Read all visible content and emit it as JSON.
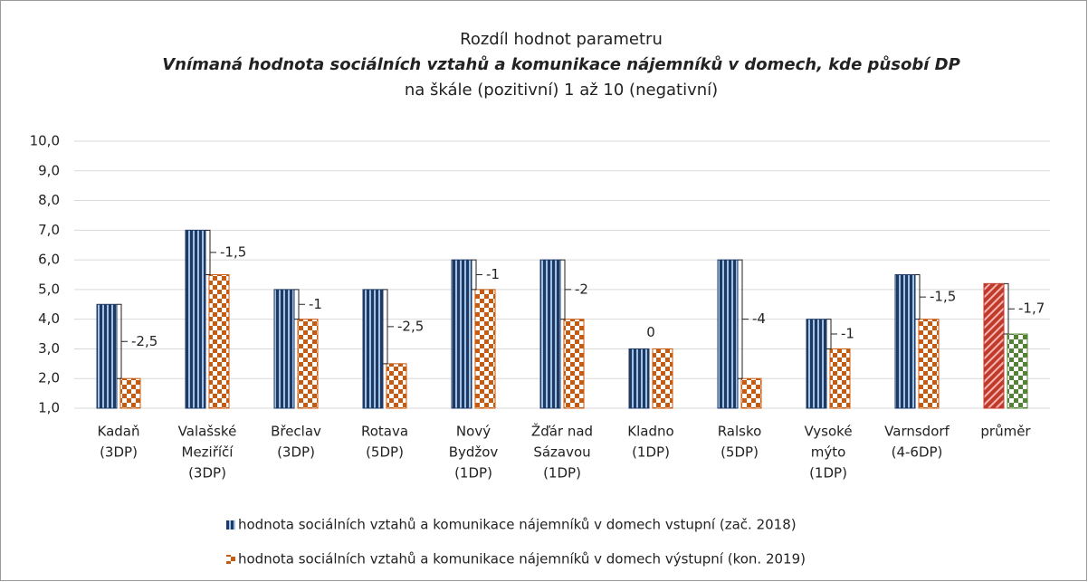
{
  "chart_data": {
    "type": "bar",
    "title": "Rozdíl hodnot parametru",
    "subtitle": "Vnímaná hodnota sociálních vztahů a komunikace nájemníků v domech, kde působí DP",
    "subtitle2": "na škále (pozitivní) 1 až 10 (negativní)",
    "categories": [
      [
        "Kadaň",
        "(3DP)"
      ],
      [
        "Valašské",
        "Meziříčí",
        "(3DP)"
      ],
      [
        "Břeclav",
        "(3DP)"
      ],
      [
        "Rotava",
        "(5DP)"
      ],
      [
        "Nový",
        "Bydžov",
        "(1DP)"
      ],
      [
        "Žďár nad",
        "Sázavou",
        "(1DP)"
      ],
      [
        "Kladno",
        "(1DP)"
      ],
      [
        "Ralsko",
        "(5DP)"
      ],
      [
        "Vysoké",
        "mýto",
        "(1DP)"
      ],
      [
        "Varnsdorf",
        "(4-6DP)"
      ],
      [
        "průměr"
      ]
    ],
    "series": [
      {
        "name": "hodnota sociálních vztahů a komunikace nájemníků v domech vstupní (zač. 2018)",
        "color": "#1f3864",
        "colors": [
          "#1f3864",
          "#1f3864",
          "#1f3864",
          "#1f3864",
          "#1f3864",
          "#1f3864",
          "#1f3864",
          "#1f3864",
          "#1f3864",
          "#1f3864",
          "#c0392b"
        ],
        "values": [
          4.5,
          7,
          5,
          5,
          6,
          6,
          3,
          6,
          4,
          5.5,
          5.2
        ]
      },
      {
        "name": "hodnota sociálních vztahů a komunikace nájemníků v domech výstupní (kon. 2019)",
        "color": "#c55a11",
        "colors": [
          "#c55a11",
          "#c55a11",
          "#c55a11",
          "#c55a11",
          "#c55a11",
          "#c55a11",
          "#c55a11",
          "#c55a11",
          "#c55a11",
          "#c55a11",
          "#548235"
        ],
        "values": [
          2,
          5.5,
          4,
          2.5,
          5,
          4,
          3,
          2,
          3,
          4,
          3.5
        ]
      }
    ],
    "differences": [
      -2.5,
      -1.5,
      -1,
      -2.5,
      -1,
      -2,
      0,
      -4,
      -1,
      -1.5,
      -1.7
    ],
    "difference_labels": [
      "-2,5",
      "-1,5",
      "-1",
      "-2,5",
      "-1",
      "-2",
      "0",
      "-4",
      "-1",
      "-1,5",
      "-1,7"
    ],
    "ylim": [
      1,
      10
    ],
    "yticks": [
      {
        "value": 1,
        "label": "1,0"
      },
      {
        "value": 2,
        "label": "2,0"
      },
      {
        "value": 3,
        "label": "3,0"
      },
      {
        "value": 4,
        "label": "4,0"
      },
      {
        "value": 5,
        "label": "5,0"
      },
      {
        "value": 6,
        "label": "6,0"
      },
      {
        "value": 7,
        "label": "7,0"
      },
      {
        "value": 8,
        "label": "8,0"
      },
      {
        "value": 9,
        "label": "9,0"
      },
      {
        "value": 10,
        "label": "10,0"
      }
    ],
    "grid": true,
    "legend": "bottom"
  }
}
